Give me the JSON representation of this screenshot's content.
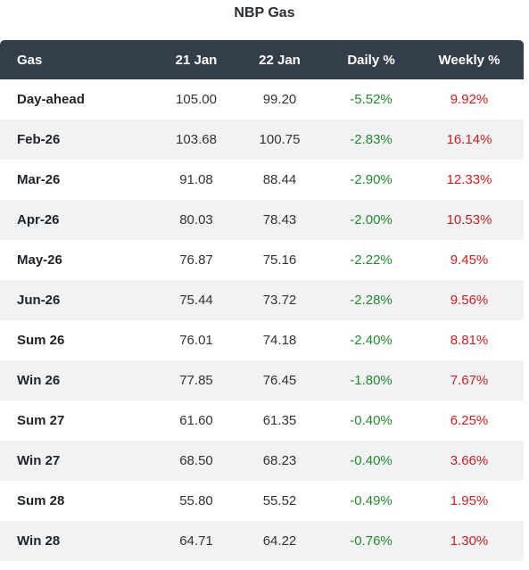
{
  "title": "NBP Gas",
  "colors": {
    "header_bg": "#343e48",
    "positive": "#cc1f1f",
    "negative": "#218a2c",
    "alt_row": "#f1f2f4"
  },
  "chart_data": {
    "type": "table",
    "title": "NBP Gas",
    "columns": [
      "Gas",
      "21 Jan",
      "22 Jan",
      "Daily %",
      "Weekly %"
    ],
    "rows": [
      {
        "name": "Day-ahead",
        "d1": "105.00",
        "d2": "99.20",
        "daily": "-5.52%",
        "weekly": "9.92%"
      },
      {
        "name": "Feb-26",
        "d1": "103.68",
        "d2": "100.75",
        "daily": "-2.83%",
        "weekly": "16.14%"
      },
      {
        "name": "Mar-26",
        "d1": "91.08",
        "d2": "88.44",
        "daily": "-2.90%",
        "weekly": "12.33%"
      },
      {
        "name": "Apr-26",
        "d1": "80.03",
        "d2": "78.43",
        "daily": "-2.00%",
        "weekly": "10.53%"
      },
      {
        "name": "May-26",
        "d1": "76.87",
        "d2": "75.16",
        "daily": "-2.22%",
        "weekly": "9.45%"
      },
      {
        "name": "Jun-26",
        "d1": "75.44",
        "d2": "73.72",
        "daily": "-2.28%",
        "weekly": "9.56%"
      },
      {
        "name": "Sum 26",
        "d1": "76.01",
        "d2": "74.18",
        "daily": "-2.40%",
        "weekly": "8.81%"
      },
      {
        "name": "Win 26",
        "d1": "77.85",
        "d2": "76.45",
        "daily": "-1.80%",
        "weekly": "7.67%"
      },
      {
        "name": "Sum 27",
        "d1": "61.60",
        "d2": "61.35",
        "daily": "-0.40%",
        "weekly": "6.25%"
      },
      {
        "name": "Win 27",
        "d1": "68.50",
        "d2": "68.23",
        "daily": "-0.40%",
        "weekly": "3.66%"
      },
      {
        "name": "Sum 28",
        "d1": "55.80",
        "d2": "55.52",
        "daily": "-0.49%",
        "weekly": "1.95%"
      },
      {
        "name": "Win 28",
        "d1": "64.71",
        "d2": "64.22",
        "daily": "-0.76%",
        "weekly": "1.30%"
      }
    ]
  }
}
